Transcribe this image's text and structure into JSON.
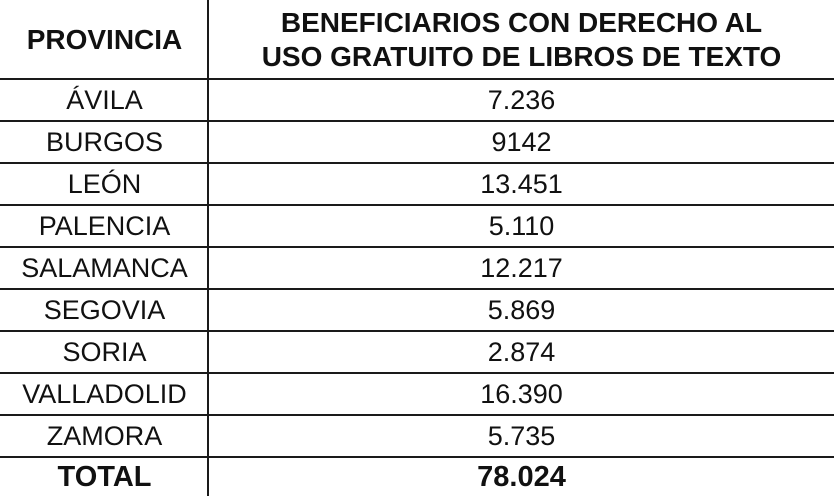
{
  "headers": {
    "province": "PROVINCIA",
    "beneficiaries_line1": "BENEFICIARIOS CON DERECHO AL",
    "beneficiaries_line2": "USO GRATUITO DE LIBROS DE TEXTO"
  },
  "rows": [
    {
      "province": "ÁVILA",
      "value": "7.236"
    },
    {
      "province": "BURGOS",
      "value": "9142"
    },
    {
      "province": "LEÓN",
      "value": "13.451"
    },
    {
      "province": "PALENCIA",
      "value": "5.110"
    },
    {
      "province": "SALAMANCA",
      "value": "12.217"
    },
    {
      "province": "SEGOVIA",
      "value": "5.869"
    },
    {
      "province": "SORIA",
      "value": "2.874"
    },
    {
      "province": "VALLADOLID",
      "value": "16.390"
    },
    {
      "province": "ZAMORA",
      "value": "5.735"
    }
  ],
  "total": {
    "label": "TOTAL",
    "value": "78.024"
  }
}
